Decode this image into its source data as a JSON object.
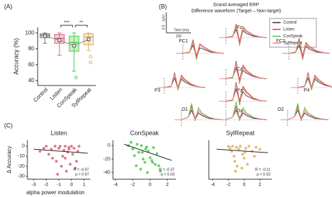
{
  "panel_labels": [
    "(A)",
    "(B)",
    "(C)"
  ],
  "chart_data": [
    {
      "type": "box",
      "y_label": "Accuracy (%)",
      "categories": [
        "Control",
        "Listen",
        "ConSpeak",
        "SylRepeat"
      ],
      "ylim": [
        34,
        107
      ],
      "yticks": [
        40,
        60,
        80,
        100
      ],
      "boxes": [
        {
          "min": 87,
          "q1": 94,
          "median": 97,
          "q3": 99,
          "max": 100,
          "mean": 96,
          "outliers": [],
          "color": "#777777"
        },
        {
          "min": 72,
          "q1": 87,
          "median": 93,
          "q3": 98,
          "max": 100,
          "mean": 91,
          "outliers": [],
          "color": "#d9607a"
        },
        {
          "min": 52,
          "q1": 77,
          "median": 88,
          "q3": 96,
          "max": 100,
          "mean": 84,
          "outliers": [
            44
          ],
          "color": "#4cc94c"
        },
        {
          "min": 78,
          "q1": 85,
          "median": 95,
          "q3": 99,
          "max": 100,
          "mean": 92,
          "outliers": [
            70,
            63
          ],
          "color": "#e0b060"
        }
      ],
      "annotations": [
        {
          "label": "***",
          "categories": [
            "Listen",
            "ConSpeak"
          ]
        },
        {
          "label": "**",
          "categories": [
            "ConSpeak",
            "SylRepeat"
          ]
        }
      ]
    },
    {
      "type": "erp",
      "title": "Grand averaged ERP",
      "subtitle": "Difference waveform (Target – Non-target)",
      "x": [
        -100,
        0,
        100,
        150,
        200,
        250,
        300,
        400,
        500,
        600
      ],
      "xlim": [
        -100,
        600
      ],
      "ylim": [
        -0.8,
        0.8
      ],
      "legend": [
        {
          "name": "Control",
          "color": "#333333"
        },
        {
          "name": "Listen",
          "color": "#e03040"
        },
        {
          "name": "ConSpeak",
          "color": "#4cc94c"
        },
        {
          "name": "SylRepeat",
          "color": "#f08080"
        }
      ],
      "scale_bar": {
        "y_value": 0.5,
        "y_unit": "(μV)",
        "x_label": "Time (ms)",
        "x_value": 200
      },
      "electrodes": [
        {
          "name": "Fz",
          "values": [
            [
              0,
              0,
              0.05,
              0.3,
              -0.2,
              0.25,
              0.15,
              0.05,
              0.02,
              0
            ],
            [
              0,
              0,
              0.05,
              0.5,
              -0.15,
              0.4,
              0.25,
              0.1,
              0.03,
              0
            ],
            [
              0,
              0,
              0.03,
              0.45,
              -0.3,
              0.3,
              0.2,
              0.08,
              0.02,
              0
            ],
            [
              0,
              0,
              0.04,
              0.4,
              -0.25,
              0.35,
              0.2,
              0.08,
              0.02,
              0
            ]
          ]
        },
        {
          "name": "FC1",
          "values": [
            [
              0,
              0,
              0.05,
              0.3,
              -0.15,
              0.2,
              0.15,
              0.05,
              0.02,
              0
            ],
            [
              0,
              0,
              0.05,
              0.5,
              -0.1,
              0.35,
              0.25,
              0.1,
              0.03,
              0
            ],
            [
              0,
              0,
              0.03,
              0.45,
              -0.25,
              0.3,
              0.2,
              0.08,
              0.02,
              0
            ],
            [
              0,
              0,
              0.04,
              0.4,
              -0.2,
              0.3,
              0.2,
              0.08,
              0.02,
              0
            ]
          ]
        },
        {
          "name": "FC2",
          "values": [
            [
              0,
              0,
              0.05,
              0.3,
              -0.15,
              0.25,
              0.15,
              0.05,
              0.02,
              0
            ],
            [
              0,
              0,
              0.05,
              0.55,
              -0.1,
              0.4,
              0.25,
              0.1,
              0.03,
              0
            ],
            [
              0,
              0,
              0.03,
              0.5,
              -0.25,
              0.3,
              0.2,
              0.08,
              0.02,
              0
            ],
            [
              0,
              0,
              0.04,
              0.45,
              -0.2,
              0.35,
              0.2,
              0.08,
              0.02,
              0
            ]
          ]
        },
        {
          "name": "Cz",
          "values": [
            [
              0,
              0,
              0.05,
              0.4,
              -0.1,
              0.3,
              0.2,
              0.08,
              0.02,
              0
            ],
            [
              0,
              0,
              0.05,
              0.65,
              -0.05,
              0.5,
              0.3,
              0.12,
              0.03,
              0
            ],
            [
              0,
              0,
              0.03,
              0.6,
              -0.2,
              0.4,
              0.25,
              0.1,
              0.02,
              0
            ],
            [
              0,
              0,
              0.04,
              0.55,
              -0.15,
              0.45,
              0.25,
              0.1,
              0.02,
              0
            ]
          ]
        },
        {
          "name": "P3",
          "values": [
            [
              0,
              0,
              0.05,
              0.35,
              -0.05,
              0.3,
              0.2,
              0.08,
              0.02,
              0
            ],
            [
              0,
              0,
              0.05,
              0.55,
              0,
              0.45,
              0.3,
              0.12,
              0.03,
              0
            ],
            [
              0,
              0,
              0.03,
              0.5,
              -0.1,
              0.35,
              0.25,
              0.1,
              0.02,
              0
            ],
            [
              0,
              0,
              0.04,
              0.5,
              -0.05,
              0.4,
              0.25,
              0.1,
              0.02,
              0
            ]
          ]
        },
        {
          "name": "Pz",
          "values": [
            [
              0,
              0,
              0.05,
              0.45,
              -0.05,
              0.35,
              0.2,
              0.08,
              0.02,
              0
            ],
            [
              0,
              0,
              0.05,
              0.7,
              0,
              0.55,
              0.35,
              0.12,
              0.03,
              0
            ],
            [
              0,
              0,
              0.03,
              0.65,
              -0.15,
              0.45,
              0.3,
              0.1,
              0.02,
              0
            ],
            [
              0,
              0,
              0.04,
              0.6,
              -0.1,
              0.5,
              0.3,
              0.1,
              0.02,
              0
            ]
          ]
        },
        {
          "name": "P4",
          "values": [
            [
              0,
              0,
              0.05,
              0.35,
              -0.05,
              0.3,
              0.2,
              0.08,
              0.02,
              0
            ],
            [
              0,
              0,
              0.05,
              0.55,
              0,
              0.45,
              0.3,
              0.12,
              0.03,
              0
            ],
            [
              0,
              0,
              0.03,
              0.5,
              -0.1,
              0.35,
              0.25,
              0.1,
              0.02,
              0
            ],
            [
              0,
              0,
              0.04,
              0.5,
              -0.05,
              0.4,
              0.25,
              0.1,
              0.02,
              0
            ]
          ]
        },
        {
          "name": "O1",
          "values": [
            [
              0,
              0,
              0.1,
              0.35,
              0,
              0.25,
              0.15,
              0.05,
              0.02,
              0
            ],
            [
              0,
              0,
              0.1,
              0.5,
              0.05,
              0.35,
              0.2,
              0.08,
              0.03,
              0
            ],
            [
              0,
              0,
              0.1,
              0.6,
              -0.05,
              0.45,
              0.25,
              0.1,
              0.02,
              0
            ],
            [
              0,
              0,
              0.1,
              0.45,
              0,
              0.35,
              0.2,
              0.08,
              0.02,
              0
            ]
          ]
        },
        {
          "name": "Oz",
          "values": [
            [
              0,
              0,
              0.1,
              0.35,
              0,
              0.25,
              0.15,
              0.05,
              0.02,
              0
            ],
            [
              0,
              0,
              0.1,
              0.5,
              0.05,
              0.35,
              0.2,
              0.08,
              0.03,
              0
            ],
            [
              0,
              0,
              0.1,
              0.65,
              -0.05,
              0.45,
              0.25,
              0.1,
              0.02,
              0
            ],
            [
              0,
              0,
              0.1,
              0.45,
              0,
              0.35,
              0.2,
              0.08,
              0.02,
              0
            ]
          ]
        },
        {
          "name": "O2",
          "values": [
            [
              0,
              0,
              0.1,
              0.35,
              0,
              0.25,
              0.15,
              0.05,
              0.02,
              0
            ],
            [
              0,
              0,
              0.1,
              0.5,
              0.05,
              0.35,
              0.2,
              0.08,
              0.03,
              0
            ],
            [
              0,
              0,
              0.1,
              0.6,
              -0.05,
              0.45,
              0.25,
              0.1,
              0.02,
              0
            ],
            [
              0,
              0,
              0.1,
              0.45,
              0,
              0.35,
              0.2,
              0.08,
              0.02,
              0
            ]
          ]
        }
      ]
    },
    {
      "type": "scatter",
      "title": "Listen",
      "y_label": "Δ Accuracy",
      "x_label": "alpha power modulation",
      "color": "#d9607a",
      "xlim": [
        -3.5,
        1.5
      ],
      "xticks": [
        -3,
        -2,
        -1,
        0,
        1
      ],
      "ylim": [
        -33,
        6
      ],
      "yticks": [
        0,
        -10,
        -20,
        -30
      ],
      "x": [
        -2.5,
        -2.2,
        -2,
        -1.8,
        -1.6,
        -1.5,
        -1.3,
        -1.2,
        -1,
        -0.9,
        -0.8,
        -0.7,
        -0.6,
        -0.5,
        -0.4,
        -0.3,
        -0.2,
        -0.1,
        0,
        0.1,
        0.2,
        0.3,
        0.5,
        0.6,
        -1.1,
        -0.5,
        -0.2,
        0.4
      ],
      "values": [
        -5,
        -2,
        0,
        -8,
        -3,
        -12,
        0,
        -15,
        -2,
        0,
        -20,
        -10,
        -4,
        0,
        -25,
        -6,
        -1,
        -18,
        0,
        -8,
        -2,
        -22,
        -5,
        0,
        -28,
        -12,
        -3,
        -15
      ],
      "fit": {
        "x": [
          -3,
          1.3
        ],
        "y": [
          -3,
          -7
        ]
      },
      "stats": [
        "R = -0.07",
        "p = 0.67"
      ]
    },
    {
      "type": "scatter",
      "title": "ConSpeak",
      "color": "#4cc94c",
      "xlim": [
        -4.3,
        3
      ],
      "xticks": [
        -4,
        -2,
        0,
        2
      ],
      "ylim": [
        -50,
        8
      ],
      "yticks": [
        0,
        -20,
        -40
      ],
      "x": [
        -2.5,
        -2.2,
        -2,
        -1.8,
        -1.6,
        -1.5,
        -1.3,
        -1.1,
        -1,
        -0.8,
        -0.6,
        -0.5,
        -0.3,
        -0.2,
        0,
        0.2,
        0.4,
        0.6,
        0.8,
        1,
        1.2,
        -0.9,
        -0.4,
        0.3
      ],
      "values": [
        0,
        5,
        -5,
        -15,
        -30,
        2,
        -10,
        -35,
        0,
        -20,
        -25,
        -5,
        -40,
        -8,
        -18,
        -22,
        -3,
        -28,
        -12,
        -30,
        -38,
        -10,
        -2,
        -25
      ],
      "fit": {
        "x": [
          -3,
          2.5
        ],
        "y": [
          2,
          -22
        ]
      },
      "stats": [
        "R = -0.37",
        "p = 0.03"
      ]
    },
    {
      "type": "scatter",
      "title": "SylRepeat",
      "color": "#e0b060",
      "xlim": [
        -4.5,
        3.5
      ],
      "xticks": [
        -4,
        -2,
        0,
        2
      ],
      "ylim": [
        -33,
        6
      ],
      "x": [
        -2,
        -1.8,
        -1.6,
        -1.5,
        -1.3,
        -1.2,
        -1,
        -0.9,
        -0.7,
        -0.5,
        -0.3,
        -0.2,
        0,
        0.2,
        0.4,
        0.6,
        1,
        1.3,
        1.5,
        2,
        -1.1,
        0.1
      ],
      "values": [
        0,
        -2,
        -5,
        0,
        -10,
        -15,
        -1,
        -20,
        -3,
        0,
        -22,
        -8,
        -12,
        -2,
        -18,
        0,
        -5,
        -10,
        -1,
        -3,
        -25,
        -6
      ],
      "fit": {
        "x": [
          -3.5,
          3
        ],
        "y": [
          -3,
          -6.5
        ]
      },
      "stats": [
        "R = -0.11",
        "p = 0.53"
      ]
    }
  ]
}
